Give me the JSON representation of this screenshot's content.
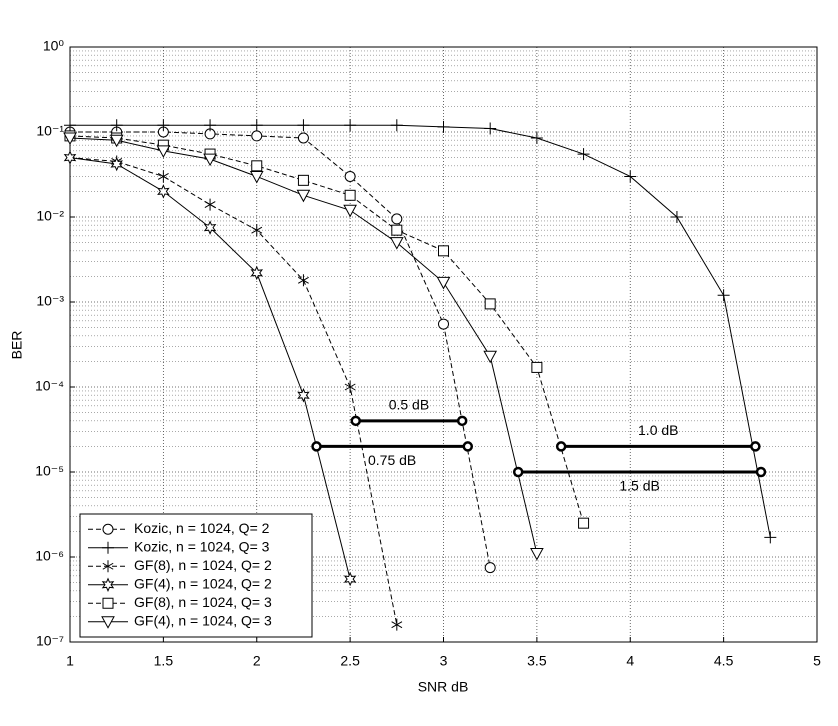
{
  "chart_data": {
    "type": "line",
    "xlabel": "SNR dB",
    "ylabel": "BER",
    "xlim": [
      1,
      5
    ],
    "ylim": [
      1e-07,
      1
    ],
    "log_y": true,
    "grid": true,
    "minor_grid": true,
    "legend": "lower left",
    "xticks": [
      1,
      1.5,
      2,
      2.5,
      3,
      3.5,
      4,
      4.5,
      5
    ],
    "yticks": [
      {
        "value": 1e-07,
        "label": "10⁻⁷"
      },
      {
        "value": 1e-06,
        "label": "10⁻⁶"
      },
      {
        "value": 1e-05,
        "label": "10⁻⁵"
      },
      {
        "value": 0.0001,
        "label": "10⁻⁴"
      },
      {
        "value": 0.001,
        "label": "10⁻³"
      },
      {
        "value": 0.01,
        "label": "10⁻²"
      },
      {
        "value": 0.1,
        "label": "10⁻¹"
      },
      {
        "value": 1,
        "label": "10⁰"
      }
    ],
    "series": [
      {
        "name": "Kozic, n = 1024, Q= 2",
        "color": "#000000",
        "marker": "circle",
        "dashed": true,
        "x": [
          1,
          1.25,
          1.5,
          1.75,
          2,
          2.25,
          2.5,
          2.75,
          3,
          3.25
        ],
        "values": [
          0.1,
          0.1,
          0.1,
          0.095,
          0.09,
          0.085,
          0.03,
          0.0095,
          0.00055,
          7.5e-07
        ]
      },
      {
        "name": "Kozic, n = 1024, Q= 3",
        "color": "#000000",
        "marker": "plus",
        "dashed": false,
        "x": [
          1,
          1.25,
          1.5,
          1.75,
          2,
          2.25,
          2.5,
          2.75,
          3,
          3.25,
          3.5,
          3.75,
          4,
          4.25,
          4.5,
          4.75
        ],
        "values": [
          0.12,
          0.12,
          0.12,
          0.12,
          0.12,
          0.12,
          0.12,
          0.12,
          0.115,
          0.11,
          0.085,
          0.055,
          0.03,
          0.01,
          0.0012,
          1.7e-06
        ]
      },
      {
        "name": "GF(8), n = 1024, Q= 2",
        "color": "#000000",
        "marker": "asterisk",
        "dashed": true,
        "x": [
          1,
          1.25,
          1.5,
          1.75,
          2,
          2.25,
          2.5,
          2.75
        ],
        "values": [
          0.05,
          0.045,
          0.03,
          0.014,
          0.007,
          0.0018,
          0.0001,
          1.6e-07
        ]
      },
      {
        "name": "GF(4), n = 1024, Q= 2",
        "color": "#000000",
        "marker": "hexagram",
        "dashed": false,
        "x": [
          1,
          1.25,
          1.5,
          1.75,
          2,
          2.25,
          2.5
        ],
        "values": [
          0.05,
          0.042,
          0.02,
          0.0075,
          0.0022,
          8e-05,
          5.5e-07
        ]
      },
      {
        "name": "GF(8), n = 1024, Q= 3",
        "color": "#000000",
        "marker": "square",
        "dashed": true,
        "x": [
          1,
          1.25,
          1.5,
          1.75,
          2,
          2.25,
          2.5,
          2.75,
          3,
          3.25,
          3.5,
          3.75
        ],
        "values": [
          0.09,
          0.085,
          0.07,
          0.055,
          0.04,
          0.027,
          0.018,
          0.007,
          0.004,
          0.00095,
          0.00017,
          2.5e-06
        ]
      },
      {
        "name": "GF(4), n = 1024, Q= 3",
        "color": "#000000",
        "marker": "triangle-down",
        "dashed": false,
        "x": [
          1,
          1.25,
          1.5,
          1.75,
          2,
          2.25,
          2.5,
          2.75,
          3,
          3.25,
          3.5
        ],
        "values": [
          0.085,
          0.08,
          0.06,
          0.048,
          0.03,
          0.018,
          0.012,
          0.005,
          0.0017,
          0.00023,
          1.1e-06
        ]
      }
    ],
    "annotations": [
      {
        "text": "0.5 dB",
        "x1": 2.53,
        "x2": 3.1,
        "y": 4e-05
      },
      {
        "text": "0.75 dB",
        "x1": 2.32,
        "x2": 3.13,
        "y": 2e-05
      },
      {
        "text": "1.0 dB",
        "x1": 3.63,
        "x2": 4.67,
        "y": 2e-05
      },
      {
        "text": "1.5 dB",
        "x1": 3.4,
        "x2": 4.7,
        "y": 1e-05
      }
    ]
  }
}
